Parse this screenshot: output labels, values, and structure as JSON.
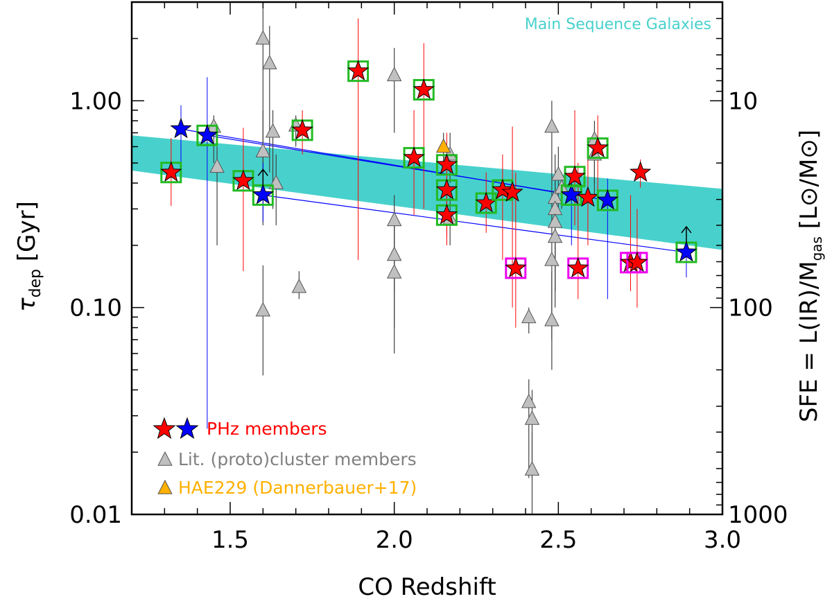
{
  "chart_data": {
    "type": "scatter",
    "title": "",
    "xlabel": "CO Redshift",
    "ylabel_left": "τ",
    "ylabel_left_sub": "dep",
    "ylabel_left_unit": "[Gyr]",
    "ylabel_right": "SFE = L(IR)/M",
    "ylabel_right_sub": "gas",
    "ylabel_right_unit": "[L⊙/M⊙]",
    "xlim": [
      1.2,
      3.0
    ],
    "ylim": [
      0.01,
      3.0
    ],
    "yscale": "log",
    "grid": false,
    "x_ticks": [
      "1.5",
      "2.0",
      "2.5",
      "3.0"
    ],
    "y_ticks_left": [
      "0.01",
      "0.10",
      "1.00"
    ],
    "y_ticks_right": [
      "1000",
      "100",
      "10"
    ],
    "annotation": "Main Sequence Galaxies",
    "colors": {
      "band": "#48d1cc",
      "phz_red": "#ff0000",
      "phz_blue": "#0000ff",
      "lit_gray": "#c0c0c0",
      "hae": "#ffb000",
      "square_green": "#22bb22",
      "square_magenta": "#ee00ee"
    },
    "main_sequence_band": {
      "x": [
        1.2,
        3.0
      ],
      "upper": [
        0.68,
        0.375
      ],
      "lower": [
        0.46,
        0.19
      ]
    },
    "legend": {
      "position": "bottom-left",
      "entries": [
        {
          "label": "PHz members",
          "color": "#ff0000",
          "marker": "star"
        },
        {
          "label": "Lit. (proto)cluster members",
          "color": "#808080",
          "marker": "triangle"
        },
        {
          "label": "HAE229 (Dannerbauer+17)",
          "color": "#ffb000",
          "marker": "triangle"
        }
      ]
    },
    "series": [
      {
        "marker": "star",
        "points": [
          {
            "x": 1.32,
            "y": 0.45,
            "c": "red",
            "sq": "green",
            "err": [
              0.31,
              0.66
            ]
          },
          {
            "x": 1.35,
            "y": 0.73,
            "c": "blue",
            "sq": "none",
            "err": [
              0.46,
              0.95
            ]
          },
          {
            "x": 1.43,
            "y": 0.68,
            "c": "blue",
            "sq": "green",
            "err": [
              0.026,
              1.3
            ]
          },
          {
            "x": 1.54,
            "y": 0.41,
            "c": "red",
            "sq": "green",
            "err": [
              0.15,
              0.74
            ]
          },
          {
            "x": 1.6,
            "y": 0.35,
            "c": "blue",
            "sq": "green",
            "err": [
              0.26,
              0.5
            ]
          },
          {
            "x": 1.72,
            "y": 0.72,
            "c": "red",
            "sq": "green",
            "err": [
              0.55,
              0.9
            ]
          },
          {
            "x": 1.89,
            "y": 1.39,
            "c": "red",
            "sq": "green",
            "err": [
              0.17,
              2.5
            ]
          },
          {
            "x": 2.06,
            "y": 0.53,
            "c": "red",
            "sq": "green",
            "err": [
              0.28,
              0.9
            ]
          },
          {
            "x": 2.09,
            "y": 1.13,
            "c": "red",
            "sq": "green",
            "err": [
              0.3,
              1.9
            ]
          },
          {
            "x": 2.16,
            "y": 0.49,
            "c": "red",
            "sq": "green",
            "err": [
              0.3,
              0.7
            ]
          },
          {
            "x": 2.16,
            "y": 0.37,
            "c": "red",
            "sq": "green",
            "err": [
              0.22,
              0.55
            ]
          },
          {
            "x": 2.16,
            "y": 0.28,
            "c": "red",
            "sq": "green",
            "err": [
              0.2,
              0.42
            ]
          },
          {
            "x": 2.28,
            "y": 0.32,
            "c": "red",
            "sq": "green",
            "err": [
              0.23,
              0.45
            ]
          },
          {
            "x": 2.33,
            "y": 0.37,
            "c": "red",
            "sq": "green",
            "err": [
              0.17,
              0.55
            ]
          },
          {
            "x": 2.36,
            "y": 0.36,
            "c": "red",
            "sq": "none",
            "err": [
              0.1,
              0.75
            ]
          },
          {
            "x": 2.37,
            "y": 0.155,
            "c": "red",
            "sq": "magenta",
            "err": [
              0.08,
              0.45
            ]
          },
          {
            "x": 2.54,
            "y": 0.35,
            "c": "blue",
            "sq": "green",
            "err": [
              0.2,
              0.45
            ]
          },
          {
            "x": 2.55,
            "y": 0.43,
            "c": "red",
            "sq": "green",
            "err": [
              0.25,
              0.9
            ]
          },
          {
            "x": 2.56,
            "y": 0.155,
            "c": "red",
            "sq": "magenta",
            "err": [
              0.11,
              0.5
            ]
          },
          {
            "x": 2.59,
            "y": 0.34,
            "c": "red",
            "sq": "none",
            "err": [
              0.2,
              0.62
            ]
          },
          {
            "x": 2.62,
            "y": 0.59,
            "c": "red",
            "sq": "green",
            "err": [
              0.3,
              0.85
            ]
          },
          {
            "x": 2.65,
            "y": 0.33,
            "c": "blue",
            "sq": "green",
            "err": [
              0.11,
              0.42
            ]
          },
          {
            "x": 2.72,
            "y": 0.165,
            "c": "red",
            "sq": "magenta",
            "err": [
              0.12,
              0.35
            ]
          },
          {
            "x": 2.74,
            "y": 0.165,
            "c": "red",
            "sq": "magenta",
            "err": [
              0.1,
              0.3
            ]
          },
          {
            "x": 2.75,
            "y": 0.45,
            "c": "red",
            "sq": "none",
            "err": [
              0.38,
              0.52
            ]
          },
          {
            "x": 2.89,
            "y": 0.185,
            "c": "blue",
            "sq": "green",
            "err": [
              0.14,
              0.24
            ]
          }
        ]
      },
      {
        "marker": "triangle",
        "points": [
          {
            "x": 1.45,
            "y": 0.75,
            "err": [
              0.5,
              0.85
            ]
          },
          {
            "x": 1.46,
            "y": 0.48,
            "err": [
              0.2,
              0.6
            ]
          },
          {
            "x": 1.6,
            "y": 2.0,
            "err": [
              0.5,
              2.9
            ]
          },
          {
            "x": 1.6,
            "y": 0.57,
            "err": [
              0.25,
              0.9
            ]
          },
          {
            "x": 1.6,
            "y": 0.097,
            "err": [
              0.047,
              0.16
            ]
          },
          {
            "x": 1.62,
            "y": 1.52,
            "err": [
              0.45,
              2.3
            ]
          },
          {
            "x": 1.63,
            "y": 0.71,
            "err": [
              0.3,
              0.9
            ]
          },
          {
            "x": 1.64,
            "y": 0.4,
            "err": [
              0.25,
              0.55
            ]
          },
          {
            "x": 1.7,
            "y": 0.76,
            "err": [
              0.6,
              0.85
            ]
          },
          {
            "x": 1.71,
            "y": 0.126,
            "err": [
              0.11,
              0.15
            ]
          },
          {
            "x": 2.0,
            "y": 1.33,
            "err": [
              0.7,
              1.8
            ]
          },
          {
            "x": 2.0,
            "y": 0.265,
            "err": [
              0.12,
              0.35
            ]
          },
          {
            "x": 2.0,
            "y": 0.18,
            "err": [
              0.06,
              0.3
            ]
          },
          {
            "x": 2.0,
            "y": 0.148,
            "err": [
              0.08,
              0.25
            ]
          },
          {
            "x": 2.17,
            "y": 0.55,
            "err": [
              0.4,
              0.7
            ]
          },
          {
            "x": 2.17,
            "y": 0.27,
            "err": [
              0.2,
              0.35
            ]
          },
          {
            "x": 2.41,
            "y": 0.09,
            "err": [
              0.075,
              0.1
            ]
          },
          {
            "x": 2.41,
            "y": 0.035,
            "err": [
              0.015,
              0.045
            ]
          },
          {
            "x": 2.42,
            "y": 0.029,
            "err": [
              0.015,
              0.04
            ]
          },
          {
            "x": 2.42,
            "y": 0.0165,
            "err": [
              0.01,
              0.025
            ]
          },
          {
            "x": 2.48,
            "y": 0.75,
            "err": [
              0.3,
              1.0
            ]
          },
          {
            "x": 2.48,
            "y": 0.17,
            "err": [
              0.07,
              0.3
            ]
          },
          {
            "x": 2.48,
            "y": 0.087,
            "err": [
              0.05,
              0.15
            ]
          },
          {
            "x": 2.49,
            "y": 0.34,
            "err": [
              0.12,
              0.55
            ]
          },
          {
            "x": 2.49,
            "y": 0.3,
            "err": [
              0.12,
              0.45
            ]
          },
          {
            "x": 2.49,
            "y": 0.26,
            "err": [
              0.12,
              0.4
            ]
          },
          {
            "x": 2.49,
            "y": 0.22,
            "err": [
              0.1,
              0.3
            ]
          },
          {
            "x": 2.5,
            "y": 0.44,
            "err": [
              0.3,
              0.6
            ]
          },
          {
            "x": 2.51,
            "y": 0.38,
            "err": [
              0.3,
              0.45
            ]
          },
          {
            "x": 2.61,
            "y": 0.65,
            "err": [
              0.4,
              0.8
            ]
          },
          {
            "x": 2.61,
            "y": 0.55,
            "err": [
              0.35,
              0.7
            ]
          }
        ]
      },
      {
        "marker": "triangle-hae",
        "points": [
          {
            "x": 2.15,
            "y": 0.6,
            "err": [
              0.5,
              0.7
            ]
          }
        ]
      }
    ],
    "lower_limit_arrows": [
      {
        "x": 1.6,
        "y": 0.35
      },
      {
        "x": 2.89,
        "y": 0.185
      }
    ],
    "connecting_lines": [
      {
        "from": {
          "x": 1.35,
          "y": 0.73
        },
        "to": {
          "x": 2.54,
          "y": 0.35
        }
      },
      {
        "from": {
          "x": 1.43,
          "y": 0.68
        },
        "to": {
          "x": 2.65,
          "y": 0.33
        }
      },
      {
        "from": {
          "x": 1.6,
          "y": 0.35
        },
        "to": {
          "x": 2.89,
          "y": 0.185
        }
      }
    ]
  }
}
